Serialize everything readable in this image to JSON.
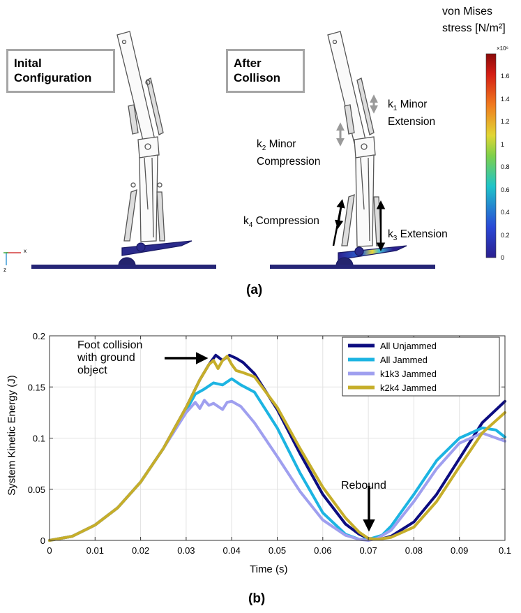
{
  "panel_a": {
    "caption": "(a)",
    "initial_label": "Inital\nConfiguration",
    "after_label": "After\nCollison",
    "colorbar": {
      "title": "von Mises\nstress [N/m²]",
      "exponent": "×10⁶",
      "ticks": [
        "1.6",
        "1.4",
        "1.2",
        "1",
        "0.8",
        "0.6",
        "0.4",
        "0.2",
        "0"
      ],
      "max_value": 1.8
    },
    "springs": {
      "k1": {
        "sym": "k",
        "sub": "1",
        "text": " Minor",
        "text2": "Extension"
      },
      "k2": {
        "sym": "k",
        "sub": "2",
        "text": " Minor",
        "text2": "Compression"
      },
      "k3": {
        "sym": "k",
        "sub": "3",
        "text": " Extension"
      },
      "k4": {
        "sym": "k",
        "sub": "4",
        "text": " Compression"
      }
    },
    "axes_triad": {
      "x": "x",
      "z": "z"
    }
  },
  "panel_b": {
    "caption": "(b)",
    "annotations": {
      "collision": "Foot collision\nwith ground\nobject",
      "rebound": "Rebound"
    }
  },
  "chart_data": {
    "type": "line",
    "xlabel": "Time (s)",
    "ylabel": "System Kinetic Energy (J)",
    "xlim": [
      0,
      0.1
    ],
    "ylim": [
      0,
      0.2
    ],
    "xticks": [
      0,
      0.01,
      0.02,
      0.03,
      0.04,
      0.05,
      0.06,
      0.07,
      0.08,
      0.09,
      0.1
    ],
    "yticks": [
      0,
      0.05,
      0.1,
      0.15,
      0.2
    ],
    "xtick_labels": [
      "0",
      "0.01",
      "0.02",
      "0.03",
      "0.04",
      "0.05",
      "0.06",
      "0.07",
      "0.08",
      "0.09",
      "0.1"
    ],
    "ytick_labels": [
      "0",
      "0.05",
      "0.1",
      "0.15",
      "0.2"
    ],
    "grid": true,
    "legend_position": "top-right",
    "series": [
      {
        "name": "All Unjammed",
        "color": "#0d0d80",
        "x": [
          0,
          0.005,
          0.01,
          0.015,
          0.02,
          0.025,
          0.03,
          0.033,
          0.035,
          0.0365,
          0.038,
          0.0395,
          0.041,
          0.0425,
          0.045,
          0.05,
          0.055,
          0.06,
          0.065,
          0.068,
          0.07,
          0.0725,
          0.075,
          0.08,
          0.085,
          0.09,
          0.095,
          0.1
        ],
        "y": [
          0,
          0.004,
          0.015,
          0.032,
          0.057,
          0.09,
          0.13,
          0.157,
          0.172,
          0.181,
          0.176,
          0.181,
          0.178,
          0.174,
          0.163,
          0.128,
          0.085,
          0.045,
          0.016,
          0.006,
          0.002,
          0.001,
          0.004,
          0.018,
          0.045,
          0.08,
          0.115,
          0.136
        ]
      },
      {
        "name": "All Jammed",
        "color": "#1cb4e2",
        "x": [
          0,
          0.005,
          0.01,
          0.015,
          0.02,
          0.025,
          0.03,
          0.032,
          0.034,
          0.036,
          0.038,
          0.04,
          0.042,
          0.045,
          0.05,
          0.055,
          0.06,
          0.065,
          0.068,
          0.07,
          0.073,
          0.075,
          0.08,
          0.085,
          0.09,
          0.095,
          0.098,
          0.1
        ],
        "y": [
          0,
          0.004,
          0.015,
          0.032,
          0.057,
          0.09,
          0.127,
          0.143,
          0.148,
          0.154,
          0.152,
          0.158,
          0.152,
          0.145,
          0.11,
          0.066,
          0.027,
          0.006,
          0.001,
          0.001,
          0.005,
          0.014,
          0.045,
          0.078,
          0.1,
          0.11,
          0.108,
          0.101
        ]
      },
      {
        "name": "k1k3 Jammed",
        "color": "#9f9fef",
        "x": [
          0,
          0.005,
          0.01,
          0.015,
          0.02,
          0.025,
          0.03,
          0.032,
          0.033,
          0.034,
          0.035,
          0.036,
          0.038,
          0.039,
          0.04,
          0.042,
          0.045,
          0.05,
          0.055,
          0.06,
          0.065,
          0.068,
          0.07,
          0.072,
          0.075,
          0.08,
          0.085,
          0.09,
          0.095,
          0.1
        ],
        "y": [
          0,
          0.004,
          0.015,
          0.032,
          0.057,
          0.09,
          0.125,
          0.135,
          0.129,
          0.137,
          0.132,
          0.134,
          0.128,
          0.135,
          0.136,
          0.131,
          0.115,
          0.082,
          0.048,
          0.02,
          0.005,
          0.001,
          0.0,
          0.002,
          0.01,
          0.038,
          0.07,
          0.095,
          0.105,
          0.097
        ]
      },
      {
        "name": "k2k4 Jammed",
        "color": "#c6ae2a",
        "x": [
          0,
          0.005,
          0.01,
          0.015,
          0.02,
          0.025,
          0.03,
          0.033,
          0.035,
          0.036,
          0.037,
          0.038,
          0.039,
          0.04,
          0.041,
          0.0425,
          0.045,
          0.05,
          0.055,
          0.06,
          0.065,
          0.068,
          0.07,
          0.072,
          0.075,
          0.08,
          0.085,
          0.09,
          0.095,
          0.1
        ],
        "y": [
          0,
          0.004,
          0.015,
          0.032,
          0.057,
          0.09,
          0.13,
          0.157,
          0.172,
          0.176,
          0.168,
          0.176,
          0.18,
          0.172,
          0.166,
          0.164,
          0.16,
          0.13,
          0.09,
          0.052,
          0.022,
          0.008,
          0.002,
          0.001,
          0.003,
          0.013,
          0.038,
          0.072,
          0.105,
          0.125
        ]
      }
    ]
  }
}
